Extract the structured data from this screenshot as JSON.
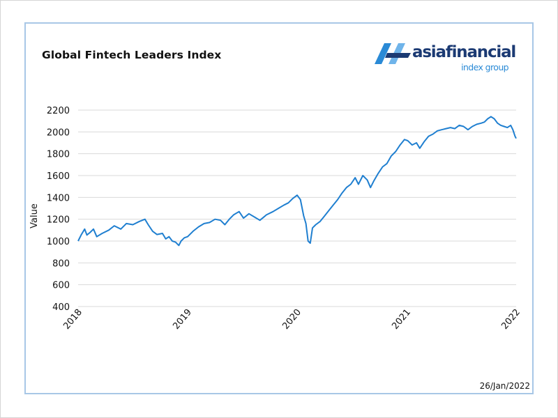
{
  "header": {
    "title": "Global Fintech Leaders Index"
  },
  "logo": {
    "brand_line1": "asiafinancial",
    "brand_line2": "index group",
    "accent_color": "#2a8ad6",
    "brand_color": "#1b3a73"
  },
  "footer": {
    "date": "26/Jan/2022"
  },
  "colors": {
    "line": "#1f7fd0",
    "grid": "#d9d9d9",
    "card_border": "#a8c7e6"
  },
  "chart_data": {
    "type": "line",
    "title": "Global Fintech Leaders Index",
    "xlabel": "",
    "ylabel": "Value",
    "xlim": [
      2018.0,
      2022.0
    ],
    "ylim": [
      400,
      2200
    ],
    "yticks": [
      "400",
      "600",
      "800",
      "1000",
      "1200",
      "1400",
      "1600",
      "1800",
      "2000",
      "2200"
    ],
    "xticks": [
      "2018",
      "2019",
      "2020",
      "2021",
      "2022"
    ],
    "grid": "horizontal",
    "legend": "none",
    "series": [
      {
        "points": [
          [
            2018.0,
            1000
          ],
          [
            2018.03,
            1060
          ],
          [
            2018.06,
            1110
          ],
          [
            2018.08,
            1055
          ],
          [
            2018.11,
            1080
          ],
          [
            2018.14,
            1110
          ],
          [
            2018.17,
            1040
          ],
          [
            2018.22,
            1070
          ],
          [
            2018.28,
            1100
          ],
          [
            2018.33,
            1140
          ],
          [
            2018.39,
            1110
          ],
          [
            2018.44,
            1160
          ],
          [
            2018.5,
            1150
          ],
          [
            2018.56,
            1180
          ],
          [
            2018.61,
            1200
          ],
          [
            2018.64,
            1150
          ],
          [
            2018.68,
            1090
          ],
          [
            2018.72,
            1060
          ],
          [
            2018.77,
            1070
          ],
          [
            2018.8,
            1020
          ],
          [
            2018.83,
            1040
          ],
          [
            2018.86,
            1000
          ],
          [
            2018.89,
            990
          ],
          [
            2018.92,
            960
          ],
          [
            2018.94,
            1000
          ],
          [
            2018.97,
            1030
          ],
          [
            2019.0,
            1040
          ],
          [
            2019.05,
            1090
          ],
          [
            2019.1,
            1130
          ],
          [
            2019.15,
            1160
          ],
          [
            2019.2,
            1170
          ],
          [
            2019.25,
            1200
          ],
          [
            2019.3,
            1190
          ],
          [
            2019.34,
            1150
          ],
          [
            2019.38,
            1200
          ],
          [
            2019.42,
            1240
          ],
          [
            2019.47,
            1270
          ],
          [
            2019.51,
            1210
          ],
          [
            2019.56,
            1250
          ],
          [
            2019.61,
            1220
          ],
          [
            2019.66,
            1190
          ],
          [
            2019.72,
            1240
          ],
          [
            2019.78,
            1270
          ],
          [
            2019.83,
            1300
          ],
          [
            2019.88,
            1330
          ],
          [
            2019.92,
            1350
          ],
          [
            2019.96,
            1390
          ],
          [
            2020.0,
            1420
          ],
          [
            2020.03,
            1380
          ],
          [
            2020.06,
            1230
          ],
          [
            2020.08,
            1160
          ],
          [
            2020.1,
            1000
          ],
          [
            2020.12,
            980
          ],
          [
            2020.14,
            1120
          ],
          [
            2020.17,
            1150
          ],
          [
            2020.21,
            1180
          ],
          [
            2020.25,
            1230
          ],
          [
            2020.29,
            1280
          ],
          [
            2020.33,
            1330
          ],
          [
            2020.37,
            1380
          ],
          [
            2020.41,
            1440
          ],
          [
            2020.45,
            1490
          ],
          [
            2020.49,
            1520
          ],
          [
            2020.53,
            1580
          ],
          [
            2020.56,
            1520
          ],
          [
            2020.6,
            1600
          ],
          [
            2020.64,
            1560
          ],
          [
            2020.67,
            1490
          ],
          [
            2020.7,
            1550
          ],
          [
            2020.74,
            1620
          ],
          [
            2020.78,
            1680
          ],
          [
            2020.82,
            1710
          ],
          [
            2020.86,
            1780
          ],
          [
            2020.9,
            1820
          ],
          [
            2020.94,
            1880
          ],
          [
            2020.98,
            1930
          ],
          [
            2021.01,
            1920
          ],
          [
            2021.05,
            1880
          ],
          [
            2021.09,
            1900
          ],
          [
            2021.12,
            1850
          ],
          [
            2021.16,
            1910
          ],
          [
            2021.2,
            1960
          ],
          [
            2021.24,
            1980
          ],
          [
            2021.28,
            2010
          ],
          [
            2021.32,
            2020
          ],
          [
            2021.36,
            2030
          ],
          [
            2021.4,
            2040
          ],
          [
            2021.44,
            2030
          ],
          [
            2021.48,
            2060
          ],
          [
            2021.52,
            2050
          ],
          [
            2021.56,
            2020
          ],
          [
            2021.6,
            2050
          ],
          [
            2021.64,
            2070
          ],
          [
            2021.68,
            2080
          ],
          [
            2021.71,
            2090
          ],
          [
            2021.74,
            2120
          ],
          [
            2021.77,
            2140
          ],
          [
            2021.8,
            2120
          ],
          [
            2021.83,
            2080
          ],
          [
            2021.86,
            2060
          ],
          [
            2021.89,
            2050
          ],
          [
            2021.92,
            2040
          ],
          [
            2021.95,
            2060
          ],
          [
            2021.97,
            2020
          ],
          [
            2021.99,
            1960
          ],
          [
            2022.0,
            1940
          ]
        ]
      }
    ]
  }
}
